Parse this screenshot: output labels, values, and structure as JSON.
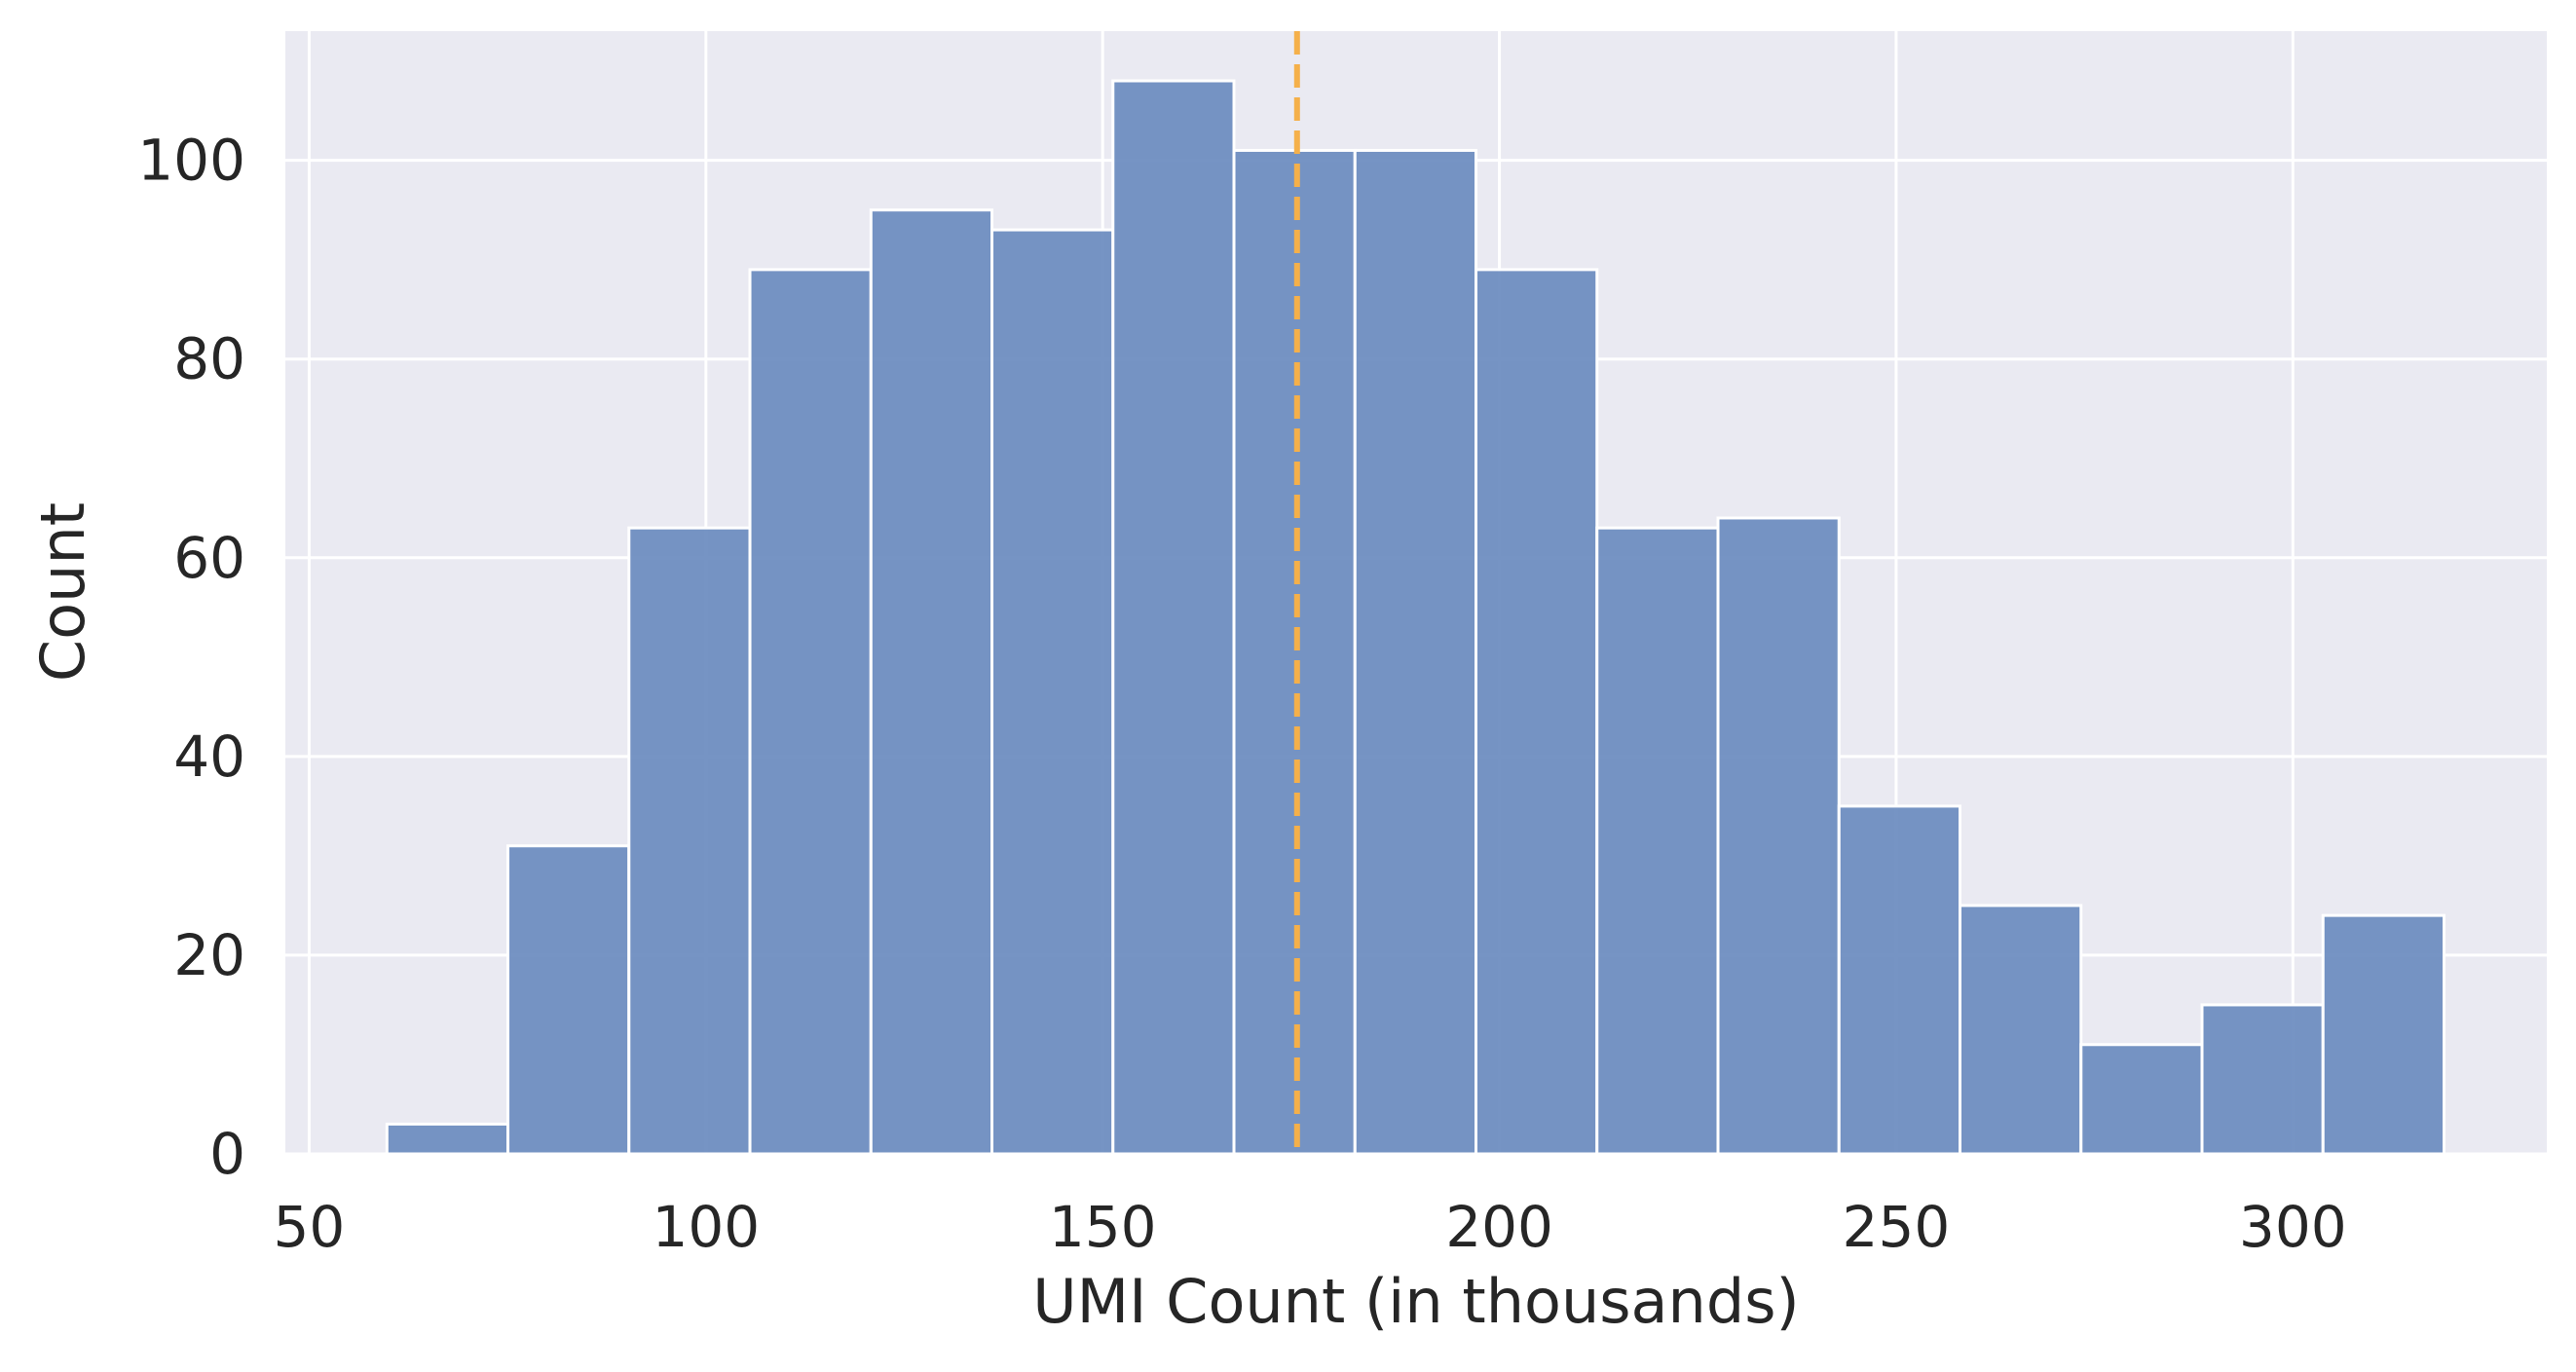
{
  "chart_data": {
    "type": "bar",
    "subtype": "histogram",
    "title": "",
    "xlabel": "UMI Count (in thousands)",
    "ylabel": "Count",
    "xlim": [
      47,
      332
    ],
    "ylim": [
      0,
      113
    ],
    "xticks": [
      50,
      100,
      150,
      200,
      250,
      300
    ],
    "yticks": [
      0,
      20,
      40,
      60,
      80,
      100
    ],
    "bin_start": 59.8,
    "bin_width": 15.25,
    "values": [
      3,
      31,
      63,
      89,
      95,
      93,
      108,
      101,
      101,
      89,
      63,
      64,
      35,
      25,
      11,
      15,
      24
    ],
    "reference_line": {
      "x": 174.5,
      "style": "dashed",
      "color": "#f5b04a"
    },
    "grid": true,
    "colors": {
      "bar_fill": "#6a8bbf",
      "bar_edge": "#ffffff",
      "background": "#eaeaf2",
      "grid": "#ffffff"
    }
  }
}
